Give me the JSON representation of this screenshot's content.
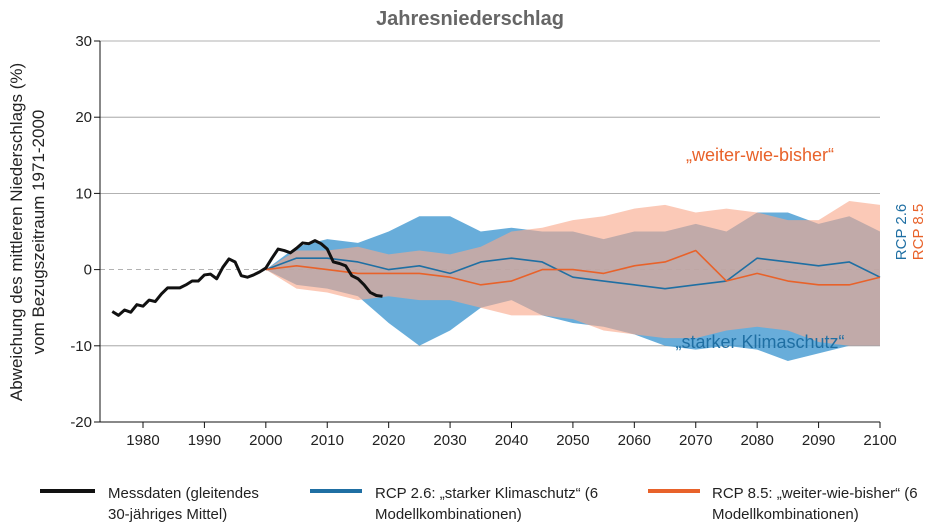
{
  "chart_data": {
    "type": "line",
    "title": "Jahresniederschlag",
    "ylabel": [
      "Abweichung des mittleren Niederschlags (%)",
      "vom Bezugszeitraum 1971-2000"
    ],
    "xlim": [
      1973,
      2100
    ],
    "xticks": [
      1980,
      1990,
      2000,
      2010,
      2020,
      2030,
      2040,
      2050,
      2060,
      2070,
      2080,
      2090,
      2100
    ],
    "ylim": [
      -20,
      30
    ],
    "yticks": [
      -20,
      -10,
      0,
      10,
      20,
      30
    ],
    "grid": true,
    "annotations": [
      "„weiter-wie-bisher“",
      "„starker Klimaschutz“",
      "RCP 2.6",
      "RCP 8.5"
    ],
    "series": [
      {
        "name": "RCP 2.6: „starker Klimaschutz“ (6 Modellkombinationen)",
        "color": "#1f6fa3",
        "band_color": "#4d9fd3",
        "x": [
          2000,
          2005,
          2010,
          2015,
          2020,
          2025,
          2030,
          2035,
          2040,
          2045,
          2050,
          2055,
          2060,
          2065,
          2070,
          2075,
          2080,
          2085,
          2090,
          2095,
          2100
        ],
        "values": [
          0,
          1.5,
          1.5,
          1,
          0,
          0.5,
          -0.5,
          1,
          1.5,
          1,
          -1,
          -1.5,
          -2,
          -2.5,
          -2,
          -1.5,
          1.5,
          1,
          0.5,
          1,
          -1
        ],
        "upper": [
          0,
          3,
          4,
          3.5,
          5,
          7,
          7,
          5,
          5.5,
          5,
          5,
          4,
          5,
          5,
          6,
          5,
          7.5,
          7.5,
          6,
          7,
          5
        ],
        "lower": [
          0,
          -2,
          -2.5,
          -3.5,
          -7,
          -10,
          -8,
          -5,
          -4,
          -6,
          -7,
          -7.5,
          -8.5,
          -10,
          -10.5,
          -10,
          -10.5,
          -12,
          -11,
          -10,
          -10
        ]
      },
      {
        "name": "RCP 8.5: „weiter-wie-bisher“ (6 Modellkombinationen)",
        "color": "#e8622a",
        "band_color": "#f8a88a",
        "x": [
          2000,
          2005,
          2010,
          2015,
          2020,
          2025,
          2030,
          2035,
          2040,
          2045,
          2050,
          2055,
          2060,
          2065,
          2070,
          2075,
          2080,
          2085,
          2090,
          2095,
          2100
        ],
        "values": [
          0,
          0.5,
          0,
          -0.5,
          -0.5,
          -0.5,
          -1,
          -2,
          -1.5,
          0,
          0,
          -0.5,
          0.5,
          1,
          2.5,
          -1.5,
          -0.5,
          -1.5,
          -2,
          -2,
          -1
        ],
        "upper": [
          0,
          2.5,
          2.5,
          3,
          2,
          2.5,
          2,
          3,
          5,
          5.5,
          6.5,
          7,
          8,
          8.5,
          7.5,
          8,
          7.5,
          6.5,
          6.5,
          9,
          8.5
        ],
        "lower": [
          0,
          -2.5,
          -3,
          -4,
          -3.5,
          -4,
          -4,
          -5,
          -6,
          -6,
          -6.5,
          -8,
          -8.5,
          -9,
          -9,
          -8,
          -7.5,
          -8,
          -9.5,
          -10,
          -10
        ]
      },
      {
        "name": "Messdaten (gleitendes 30-jähriges Mittel)",
        "color": "#111111",
        "x": [
          1975,
          1976,
          1977,
          1978,
          1979,
          1980,
          1981,
          1982,
          1983,
          1984,
          1985,
          1986,
          1987,
          1988,
          1989,
          1990,
          1991,
          1992,
          1993,
          1994,
          1995,
          1996,
          1997,
          1998,
          1999,
          2000,
          2001,
          2002,
          2003,
          2004,
          2005,
          2006,
          2007,
          2008,
          2009,
          2010,
          2011,
          2012,
          2013,
          2014,
          2015,
          2016,
          2017,
          2018,
          2019
        ],
        "values": [
          -5.5,
          -6,
          -5.3,
          -5.6,
          -4.6,
          -4.8,
          -4,
          -4.2,
          -3.2,
          -2.4,
          -2.4,
          -2.4,
          -2,
          -1.5,
          -1.5,
          -0.7,
          -0.6,
          -1.2,
          0.3,
          1.4,
          1,
          -0.8,
          -1,
          -0.7,
          -0.3,
          0.2,
          1.5,
          2.7,
          2.5,
          2.2,
          2.8,
          3.5,
          3.4,
          3.8,
          3.4,
          2.7,
          1,
          0.8,
          0.5,
          -0.8,
          -1.2,
          -2,
          -3,
          -3.4,
          -3.5
        ]
      }
    ]
  }
}
